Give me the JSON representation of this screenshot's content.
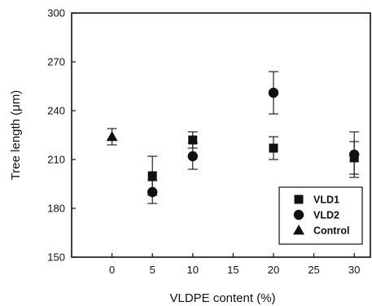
{
  "chart_data": {
    "type": "scatter",
    "title": "",
    "xlabel": "VLDPE content (%)",
    "ylabel": "Tree length (μm)",
    "xlim": [
      -5,
      32
    ],
    "ylim": [
      150,
      300
    ],
    "xticks": [
      0,
      5,
      10,
      15,
      20,
      25,
      30
    ],
    "yticks": [
      150,
      180,
      210,
      240,
      270,
      300
    ],
    "grid": false,
    "legend_position": "bottom-right",
    "series": [
      {
        "name": "VLD1",
        "marker": "square",
        "x": [
          5,
          10,
          20,
          30
        ],
        "y": [
          200,
          222,
          217,
          211
        ],
        "error": [
          12,
          5,
          7,
          10
        ]
      },
      {
        "name": "VLD2",
        "marker": "circle",
        "x": [
          5,
          10,
          20,
          30
        ],
        "y": [
          190,
          212,
          251,
          213
        ],
        "error": [
          7,
          8,
          13,
          14
        ]
      },
      {
        "name": "Control",
        "marker": "triangle",
        "x": [
          0
        ],
        "y": [
          224
        ],
        "error": [
          5
        ]
      }
    ]
  }
}
